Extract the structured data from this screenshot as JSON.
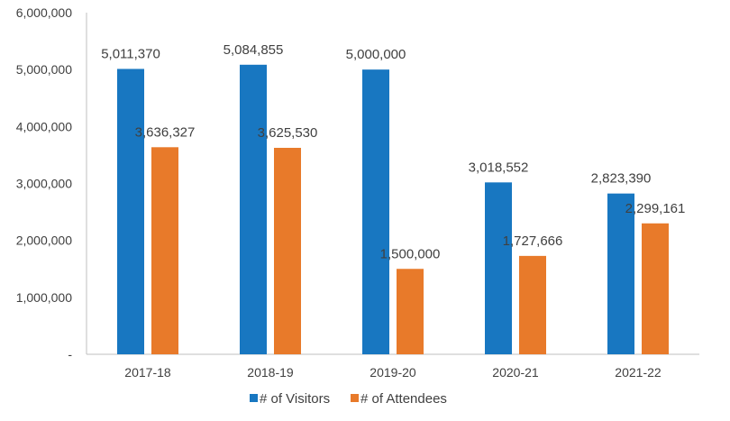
{
  "chart_data": {
    "type": "bar",
    "categories": [
      "2017-18",
      "2018-19",
      "2019-20",
      "2020-21",
      "2021-22"
    ],
    "series": [
      {
        "name": "# of Visitors",
        "color": "#1877C1",
        "values": [
          5011370,
          5084855,
          5000000,
          3018552,
          2823390
        ],
        "labels": [
          "5,011,370",
          "5,084,855",
          "5,000,000",
          "3,018,552",
          "2,823,390"
        ]
      },
      {
        "name": "# of Attendees",
        "color": "#E87A2A",
        "values": [
          3636327,
          3625530,
          1500000,
          1727666,
          2299161
        ],
        "labels": [
          "3,636,327",
          "3,625,530",
          "1,500,000",
          "1,727,666",
          "2,299,161"
        ]
      }
    ],
    "ylim": [
      0,
      6000000
    ],
    "yticks": [
      0,
      1000000,
      2000000,
      3000000,
      4000000,
      5000000,
      6000000
    ],
    "ytick_labels": [
      "-",
      "1,000,000",
      "2,000,000",
      "3,000,000",
      "4,000,000",
      "5,000,000",
      "6,000,000"
    ],
    "grid": false,
    "legend_position": "bottom",
    "title": "",
    "xlabel": "",
    "ylabel": ""
  }
}
